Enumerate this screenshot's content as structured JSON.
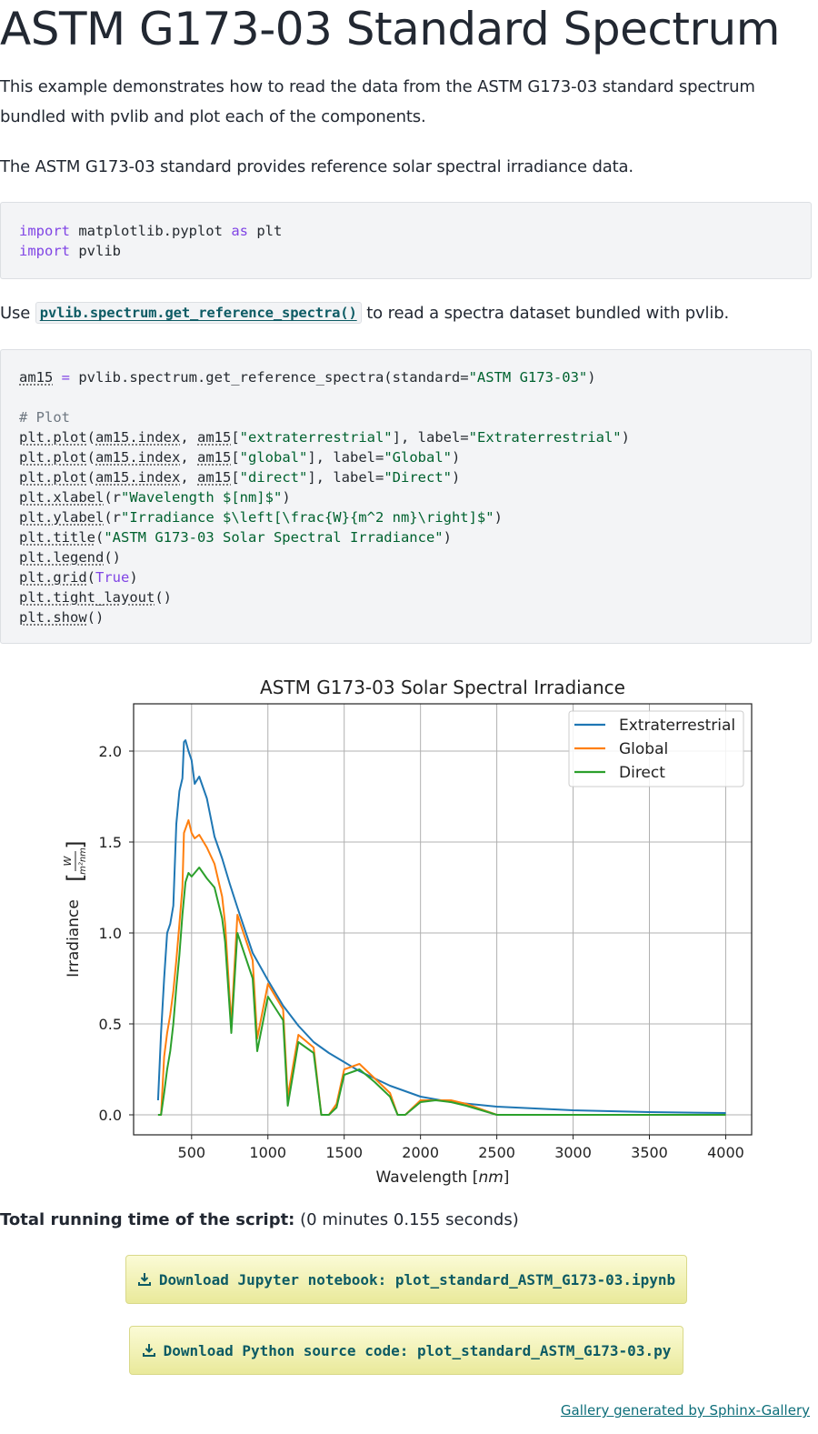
{
  "page": {
    "title": "ASTM G173-03 Standard Spectrum",
    "intro_p1": "This example demonstrates how to read the data from the ASTM G173-03 standard spectrum bundled with pvlib and plot each of the components.",
    "intro_p2": "The ASTM G173-03 standard provides reference solar spectral irradiance data.",
    "use_prefix": "Use",
    "use_link": "pvlib.spectrum.get_reference_spectra()",
    "use_suffix": "to read a spectra dataset bundled with pvlib.",
    "runtime_label": "Total running time of the script:",
    "runtime_value": "(0 minutes 0.155 seconds)",
    "download_notebook": "Download Jupyter notebook: plot_standard_ASTM_G173-03.ipynb",
    "download_python": "Download Python source code: plot_standard_ASTM_G173-03.py",
    "footer_link": "Gallery generated by Sphinx-Gallery"
  },
  "code1": {
    "line1": {
      "kw": "import",
      "rest": " matplotlib.pyplot ",
      "kw2": "as",
      "rest2": " plt"
    },
    "line2": {
      "kw": "import",
      "rest": " pvlib"
    }
  },
  "code2": {
    "l1a": "am15",
    "l1b": " = ",
    "l1c": "pvlib.spectrum.get_reference_spectra(standard=",
    "l1d": "\"ASTM G173-03\"",
    "l1e": ")",
    "comment": "# Plot",
    "plot1": {
      "fn": "plt.plot",
      "a1": "(",
      "v1": "am15.index",
      "a2": ", ",
      "v2": "am15",
      "a3": "[",
      "s1": "\"extraterrestrial\"",
      "a4": "], label=",
      "s2": "\"Extraterrestrial\"",
      "a5": ")"
    },
    "plot2": {
      "fn": "plt.plot",
      "a1": "(",
      "v1": "am15.index",
      "a2": ", ",
      "v2": "am15",
      "a3": "[",
      "s1": "\"global\"",
      "a4": "], label=",
      "s2": "\"Global\"",
      "a5": ")"
    },
    "plot3": {
      "fn": "plt.plot",
      "a1": "(",
      "v1": "am15.index",
      "a2": ", ",
      "v2": "am15",
      "a3": "[",
      "s1": "\"direct\"",
      "a4": "], label=",
      "s2": "\"Direct\"",
      "a5": ")"
    },
    "xlabel": {
      "fn": "plt.xlabel",
      "a": "(r",
      "s": "\"Wavelength $[nm]$\"",
      "b": ")"
    },
    "ylabel": {
      "fn": "plt.ylabel",
      "a": "(r",
      "s": "\"Irradiance $\\left[\\frac{W}{m^2 nm}\\right]$\"",
      "b": ")"
    },
    "title": {
      "fn": "plt.title",
      "a": "(",
      "s": "\"ASTM G173-03 Solar Spectral Irradiance\"",
      "b": ")"
    },
    "legend": {
      "fn": "plt.legend",
      "a": "()"
    },
    "grid": {
      "fn": "plt.grid",
      "a": "(",
      "v": "True",
      "b": ")"
    },
    "tight": {
      "fn": "plt.tight_layout",
      "a": "()"
    },
    "show": {
      "fn": "plt.show",
      "a": "()"
    }
  },
  "colors": {
    "extraterrestrial": "#1f77b4",
    "global": "#ff7f0e",
    "direct": "#2ca02c",
    "link": "#0d5b64"
  },
  "chart_data": {
    "type": "line",
    "title": "ASTM G173-03 Solar Spectral Irradiance",
    "xlabel_text": "Wavelength",
    "xlabel_unit": "nm",
    "ylabel_text": "Irradiance",
    "ylabel_num": "W",
    "ylabel_den": "m²nm",
    "xlim": [
      120,
      4170
    ],
    "ylim": [
      -0.11,
      2.26
    ],
    "xticks": [
      500,
      1000,
      1500,
      2000,
      2500,
      3000,
      3500,
      4000
    ],
    "xtick_labels": [
      "500",
      "1000",
      "1500",
      "2000",
      "2500",
      "3000",
      "3500",
      "4000"
    ],
    "yticks": [
      0.0,
      0.5,
      1.0,
      1.5,
      2.0
    ],
    "ytick_labels": [
      "0.0",
      "0.5",
      "1.0",
      "1.5",
      "2.0"
    ],
    "grid": true,
    "legend_position": "top-right",
    "series": [
      {
        "name": "Extraterrestrial",
        "x": [
          280,
          300,
          320,
          340,
          360,
          380,
          400,
          420,
          440,
          450,
          460,
          480,
          500,
          520,
          550,
          600,
          650,
          700,
          750,
          800,
          900,
          1000,
          1100,
          1200,
          1300,
          1400,
          1500,
          1600,
          1700,
          1800,
          2000,
          2200,
          2500,
          3000,
          3500,
          4000
        ],
        "y": [
          0.08,
          0.45,
          0.75,
          1.0,
          1.05,
          1.15,
          1.6,
          1.78,
          1.85,
          2.05,
          2.06,
          2.0,
          1.95,
          1.82,
          1.86,
          1.74,
          1.53,
          1.41,
          1.27,
          1.14,
          0.89,
          0.74,
          0.6,
          0.49,
          0.4,
          0.34,
          0.29,
          0.24,
          0.2,
          0.16,
          0.1,
          0.07,
          0.045,
          0.025,
          0.015,
          0.01
        ]
      },
      {
        "name": "Global",
        "x": [
          280,
          300,
          320,
          340,
          360,
          380,
          400,
          420,
          440,
          450,
          480,
          500,
          520,
          550,
          600,
          650,
          700,
          720,
          760,
          800,
          900,
          930,
          1000,
          1100,
          1130,
          1200,
          1300,
          1350,
          1400,
          1450,
          1500,
          1600,
          1700,
          1800,
          1850,
          1900,
          2000,
          2100,
          2200,
          2300,
          2500,
          3000,
          3500,
          4000
        ],
        "y": [
          0.0,
          0.0,
          0.32,
          0.45,
          0.55,
          0.68,
          0.85,
          1.05,
          1.25,
          1.55,
          1.62,
          1.55,
          1.52,
          1.54,
          1.47,
          1.38,
          1.2,
          1.05,
          0.5,
          1.1,
          0.85,
          0.42,
          0.72,
          0.58,
          0.1,
          0.44,
          0.37,
          0.0,
          0.0,
          0.06,
          0.25,
          0.28,
          0.2,
          0.12,
          0.0,
          0.0,
          0.08,
          0.08,
          0.08,
          0.06,
          0.0,
          0.0,
          0.0,
          0.0
        ]
      },
      {
        "name": "Direct",
        "x": [
          280,
          300,
          320,
          340,
          360,
          380,
          400,
          420,
          440,
          460,
          480,
          500,
          520,
          550,
          600,
          650,
          700,
          720,
          760,
          800,
          900,
          930,
          1000,
          1100,
          1130,
          1200,
          1300,
          1350,
          1400,
          1450,
          1500,
          1600,
          1700,
          1800,
          1850,
          1900,
          2000,
          2100,
          2200,
          2300,
          2500,
          3000,
          3500,
          4000
        ],
        "y": [
          0.0,
          0.0,
          0.12,
          0.25,
          0.35,
          0.5,
          0.7,
          0.88,
          1.1,
          1.28,
          1.33,
          1.31,
          1.33,
          1.36,
          1.3,
          1.25,
          1.08,
          0.95,
          0.45,
          1.0,
          0.75,
          0.35,
          0.65,
          0.52,
          0.05,
          0.4,
          0.34,
          0.0,
          0.0,
          0.04,
          0.22,
          0.25,
          0.18,
          0.1,
          0.0,
          0.0,
          0.07,
          0.08,
          0.07,
          0.05,
          0.0,
          0.0,
          0.0,
          0.0
        ]
      }
    ]
  }
}
